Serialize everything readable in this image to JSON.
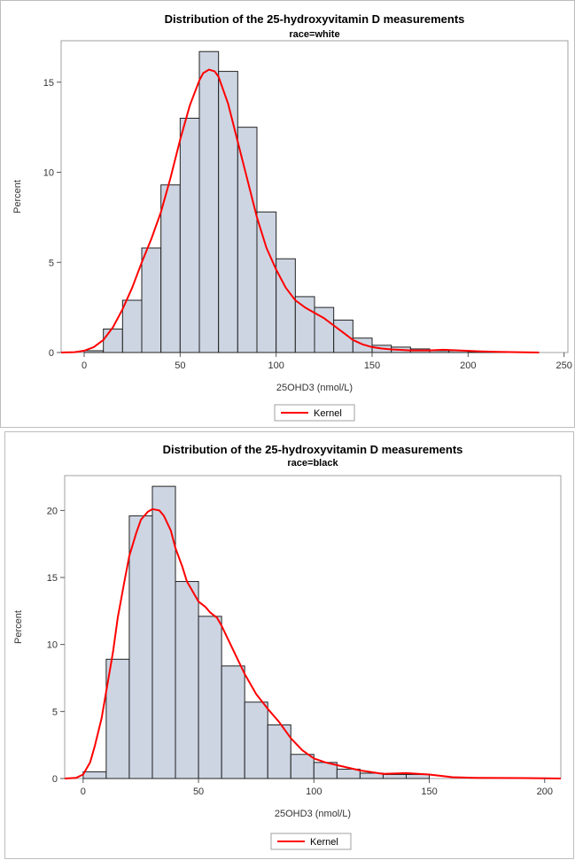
{
  "chart_data": [
    {
      "type": "histogram",
      "title": "Distribution of the 25-hydroxyvitamin D measurements",
      "subtitle": "race=white",
      "xlabel": "25OHD3 (nmol/L)",
      "ylabel": "Percent",
      "xlim": [
        -12,
        252
      ],
      "ylim": [
        0,
        17.3
      ],
      "xticks": [
        0,
        50,
        100,
        150,
        200,
        250
      ],
      "yticks": [
        0,
        5,
        10,
        15
      ],
      "bin_width": 10,
      "bins": [
        {
          "start": 0,
          "percent": 0.1
        },
        {
          "start": 10,
          "percent": 1.3
        },
        {
          "start": 20,
          "percent": 2.9
        },
        {
          "start": 30,
          "percent": 5.8
        },
        {
          "start": 40,
          "percent": 9.3
        },
        {
          "start": 50,
          "percent": 13.0
        },
        {
          "start": 60,
          "percent": 16.7
        },
        {
          "start": 70,
          "percent": 15.6
        },
        {
          "start": 80,
          "percent": 12.5
        },
        {
          "start": 90,
          "percent": 7.8
        },
        {
          "start": 100,
          "percent": 5.2
        },
        {
          "start": 110,
          "percent": 3.1
        },
        {
          "start": 120,
          "percent": 2.5
        },
        {
          "start": 130,
          "percent": 1.8
        },
        {
          "start": 140,
          "percent": 0.8
        },
        {
          "start": 150,
          "percent": 0.4
        },
        {
          "start": 160,
          "percent": 0.3
        },
        {
          "start": 170,
          "percent": 0.2
        },
        {
          "start": 180,
          "percent": 0.1
        },
        {
          "start": 190,
          "percent": 0.1
        },
        {
          "start": 200,
          "percent": 0.05
        },
        {
          "start": 210,
          "percent": 0.05
        }
      ],
      "kernel": {
        "name": "Kernel",
        "color": "#ff0000",
        "x": [
          -12,
          -5,
          0,
          5,
          10,
          15,
          20,
          25,
          30,
          35,
          40,
          45,
          50,
          55,
          60,
          62,
          65,
          68,
          70,
          75,
          80,
          85,
          90,
          95,
          100,
          105,
          110,
          115,
          120,
          125,
          130,
          135,
          140,
          145,
          150,
          155,
          160,
          170,
          180,
          187,
          195,
          205,
          215,
          225,
          237
        ],
        "y": [
          0,
          0.02,
          0.1,
          0.3,
          0.7,
          1.4,
          2.4,
          3.6,
          5.0,
          6.3,
          7.8,
          9.7,
          11.8,
          13.7,
          15.1,
          15.5,
          15.7,
          15.6,
          15.3,
          13.8,
          11.7,
          9.6,
          7.5,
          5.8,
          4.6,
          3.6,
          2.9,
          2.5,
          2.2,
          1.9,
          1.5,
          1.1,
          0.7,
          0.45,
          0.3,
          0.22,
          0.17,
          0.12,
          0.12,
          0.15,
          0.12,
          0.07,
          0.04,
          0.02,
          0
        ]
      },
      "legend": {
        "label": "Kernel",
        "placement": "bottom-center"
      }
    },
    {
      "type": "histogram",
      "title": "Distribution of the 25-hydroxyvitamin D measurements",
      "subtitle": "race=black",
      "xlabel": "25OHD3 (nmol/L)",
      "ylabel": "Percent",
      "xlim": [
        -8,
        207
      ],
      "ylim": [
        0,
        22.6
      ],
      "xticks": [
        0,
        50,
        100,
        150,
        200
      ],
      "yticks": [
        0,
        5,
        10,
        15,
        20
      ],
      "bin_width": 10,
      "bins": [
        {
          "start": 0,
          "percent": 0.5
        },
        {
          "start": 10,
          "percent": 8.9
        },
        {
          "start": 20,
          "percent": 19.6
        },
        {
          "start": 30,
          "percent": 21.8
        },
        {
          "start": 40,
          "percent": 14.7
        },
        {
          "start": 50,
          "percent": 12.1
        },
        {
          "start": 60,
          "percent": 8.4
        },
        {
          "start": 70,
          "percent": 5.7
        },
        {
          "start": 80,
          "percent": 4.0
        },
        {
          "start": 90,
          "percent": 1.8
        },
        {
          "start": 100,
          "percent": 1.2
        },
        {
          "start": 110,
          "percent": 0.7
        },
        {
          "start": 120,
          "percent": 0.4
        },
        {
          "start": 130,
          "percent": 0.3
        },
        {
          "start": 140,
          "percent": 0.3
        }
      ],
      "kernel": {
        "name": "Kernel",
        "color": "#ff0000",
        "x": [
          -8,
          -3,
          0,
          3,
          5,
          8,
          10,
          13,
          15,
          18,
          20,
          23,
          25,
          28,
          30,
          33,
          35,
          38,
          40,
          43,
          45,
          48,
          50,
          53,
          55,
          58,
          60,
          65,
          70,
          75,
          80,
          85,
          90,
          95,
          100,
          105,
          110,
          115,
          120,
          130,
          140,
          150,
          160,
          170,
          180,
          190,
          200,
          207
        ],
        "y": [
          0,
          0.05,
          0.3,
          1.2,
          2.4,
          4.5,
          6.5,
          9.5,
          12.0,
          14.8,
          16.6,
          18.3,
          19.3,
          19.9,
          20.1,
          20.0,
          19.6,
          18.5,
          17.2,
          15.8,
          14.7,
          13.8,
          13.2,
          12.8,
          12.4,
          12.0,
          11.4,
          9.6,
          7.8,
          6.3,
          5.2,
          4.2,
          3.0,
          2.1,
          1.5,
          1.2,
          1.0,
          0.8,
          0.6,
          0.35,
          0.4,
          0.3,
          0.1,
          0.05,
          0.04,
          0.03,
          0.02,
          0
        ]
      },
      "legend": {
        "label": "Kernel",
        "placement": "bottom-center"
      }
    }
  ]
}
